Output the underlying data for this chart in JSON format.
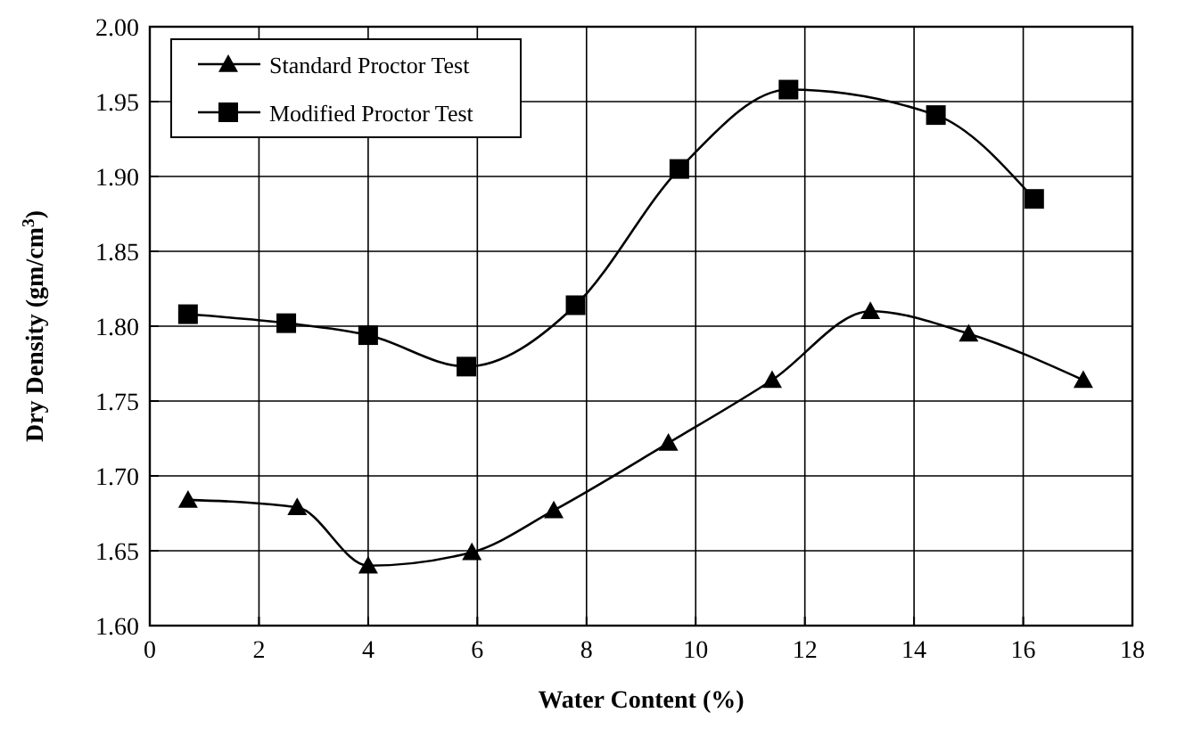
{
  "chart_data": {
    "type": "line",
    "xlabel": "Water Content (%)",
    "ylabel": "Dry Density (gm/cm$^{3}$)",
    "xlim": [
      0,
      18
    ],
    "xticks": [
      0,
      2,
      4,
      6,
      8,
      10,
      12,
      14,
      16,
      18
    ],
    "ylim": [
      1.6,
      2.0
    ],
    "yticks": [
      {
        "value": 1.6,
        "label": "1.60"
      },
      {
        "value": 1.65,
        "label": "1.65"
      },
      {
        "value": 1.7,
        "label": "1.70"
      },
      {
        "value": 1.75,
        "label": "1.75"
      },
      {
        "value": 1.8,
        "label": "1.80"
      },
      {
        "value": 1.85,
        "label": "1.85"
      },
      {
        "value": 1.9,
        "label": "1.90"
      },
      {
        "value": 1.95,
        "label": "1.95"
      },
      {
        "value": 2.0,
        "label": "2.00"
      }
    ],
    "grid": true,
    "legend": "top left",
    "series": [
      {
        "name": "Standard Proctor Test",
        "color": "#000000",
        "marker": "triangle",
        "x": [
          0.7,
          2.7,
          4.0,
          5.9,
          7.4,
          9.5,
          11.4,
          13.2,
          15.0,
          17.1
        ],
        "values": [
          1.684,
          1.679,
          1.64,
          1.649,
          1.677,
          1.722,
          1.764,
          1.81,
          1.795,
          1.764
        ]
      },
      {
        "name": "Modified Proctor Test",
        "color": "#000000",
        "marker": "square",
        "x": [
          0.7,
          2.5,
          4.0,
          5.8,
          7.8,
          9.7,
          11.7,
          14.4,
          16.2
        ],
        "values": [
          1.808,
          1.802,
          1.794,
          1.773,
          1.814,
          1.905,
          1.958,
          1.941,
          1.885
        ]
      }
    ]
  }
}
